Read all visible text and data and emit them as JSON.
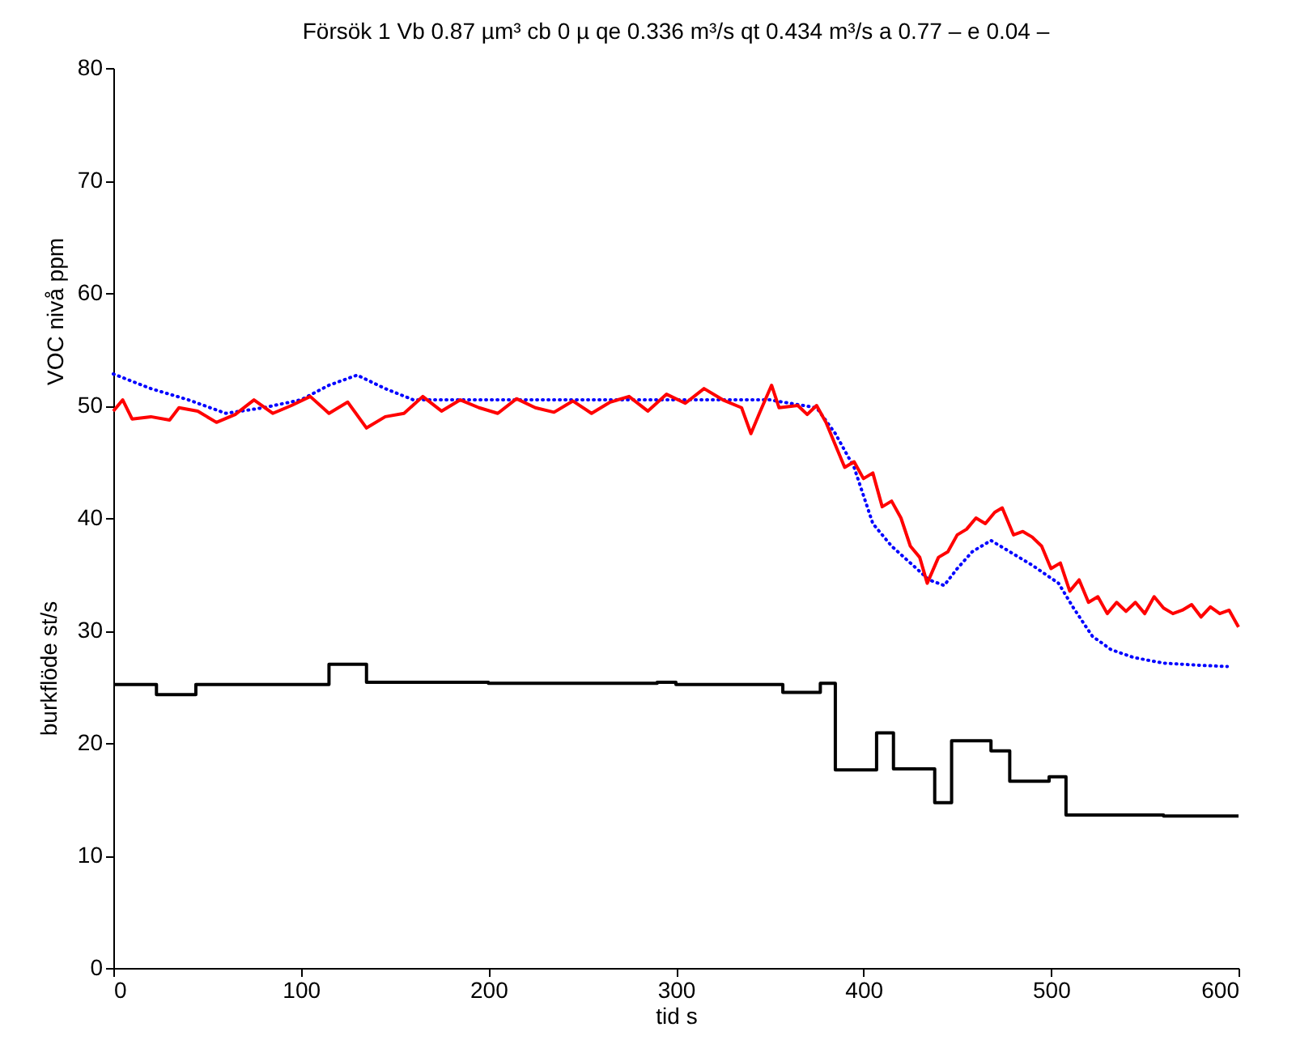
{
  "chart_data": {
    "type": "line",
    "title": "Försök 1   Vb 0.87 µm³  cb 0 µ   qe 0.336 m³/s   qt 0.434 m³/s    a 0.77 –   e 0.04 –",
    "xlabel": "tid   s",
    "ylabel": "VOC nivå   ppm",
    "annotations": [
      "burkflöde   st/s"
    ],
    "xlim": [
      0,
      600
    ],
    "xticks": [
      0,
      100,
      200,
      300,
      400,
      500,
      600
    ],
    "ylim": [
      0,
      80
    ],
    "yticks": [
      0,
      10,
      20,
      30,
      40,
      50,
      60,
      70,
      80
    ],
    "grid": false,
    "series": [
      {
        "color": "#0000ff",
        "line_style": "dotted",
        "x": [
          0,
          20,
          40,
          60,
          80,
          100,
          115,
          130,
          145,
          160,
          200,
          250,
          300,
          350,
          375,
          385,
          395,
          405,
          415,
          425,
          435,
          443,
          450,
          458,
          468,
          478,
          490,
          504,
          512,
          522,
          532,
          544,
          560,
          580,
          594
        ],
        "values": [
          52.8,
          51.5,
          50.5,
          49.3,
          49.8,
          50.5,
          51.8,
          52.7,
          51.5,
          50.5,
          50.5,
          50.5,
          50.5,
          50.5,
          49.8,
          47.5,
          44.5,
          39.5,
          37.5,
          36.0,
          34.5,
          34.0,
          35.5,
          37.0,
          38.0,
          37.0,
          35.8,
          34.2,
          32.0,
          29.5,
          28.3,
          27.6,
          27.1,
          26.9,
          26.8
        ]
      },
      {
        "color": "#ff0000",
        "line_style": "solid",
        "x": [
          0,
          5,
          10,
          20,
          30,
          35,
          45,
          55,
          65,
          75,
          85,
          95,
          105,
          115,
          125,
          135,
          145,
          155,
          165,
          175,
          185,
          195,
          205,
          215,
          225,
          235,
          245,
          255,
          265,
          275,
          285,
          295,
          305,
          315,
          325,
          335,
          340,
          345,
          351,
          355,
          365,
          370,
          375,
          380,
          385,
          390,
          395,
          400,
          405,
          410,
          415,
          420,
          425,
          430,
          434,
          440,
          445,
          450,
          455,
          460,
          465,
          470,
          474,
          480,
          485,
          490,
          495,
          500,
          505,
          510,
          515,
          520,
          525,
          530,
          535,
          540,
          545,
          550,
          555,
          560,
          565,
          570,
          575,
          580,
          585,
          590,
          595,
          600
        ],
        "values": [
          49.5,
          50.5,
          48.8,
          49.0,
          48.7,
          49.8,
          49.5,
          48.5,
          49.2,
          50.5,
          49.3,
          50.0,
          50.8,
          49.3,
          50.3,
          48.0,
          49.0,
          49.3,
          50.8,
          49.5,
          50.5,
          49.8,
          49.3,
          50.6,
          49.8,
          49.4,
          50.4,
          49.3,
          50.3,
          50.8,
          49.5,
          51.0,
          50.2,
          51.5,
          50.5,
          49.8,
          47.5,
          49.5,
          51.8,
          49.8,
          50.0,
          49.2,
          50.0,
          48.5,
          46.5,
          44.5,
          45.0,
          43.5,
          44.0,
          41.0,
          41.5,
          40.0,
          37.5,
          36.5,
          34.2,
          36.5,
          37.0,
          38.5,
          39.0,
          40.0,
          39.5,
          40.5,
          40.9,
          38.5,
          38.8,
          38.3,
          37.5,
          35.5,
          36.0,
          33.5,
          34.5,
          32.5,
          33.0,
          31.5,
          32.5,
          31.7,
          32.5,
          31.5,
          33.0,
          32.0,
          31.5,
          31.8,
          32.3,
          31.2,
          32.1,
          31.5,
          31.8,
          30.3
        ]
      },
      {
        "type": "step",
        "color": "#000000",
        "line_style": "solid",
        "x": [
          0,
          23,
          44,
          115,
          135,
          200,
          290,
          300,
          357,
          377,
          385,
          407,
          416,
          438,
          447,
          468,
          478,
          499,
          508,
          560,
          600
        ],
        "values": [
          25.2,
          24.3,
          25.2,
          27.0,
          25.4,
          25.3,
          25.4,
          25.2,
          24.5,
          25.3,
          17.6,
          20.9,
          17.7,
          14.7,
          20.2,
          19.3,
          16.6,
          17.0,
          13.6,
          13.5,
          13.5
        ]
      }
    ]
  }
}
